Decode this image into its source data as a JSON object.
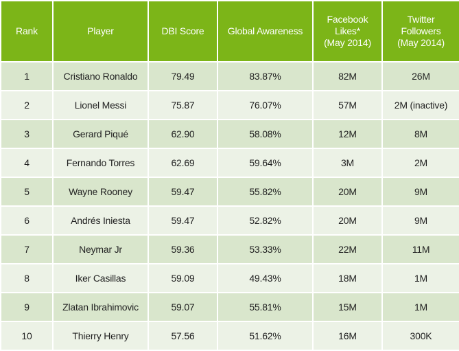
{
  "colors": {
    "header_bg": "#7cb518",
    "row_dark": "#d9e6cc",
    "row_light": "#ecf2e6",
    "header_text": "#ffffff",
    "cell_text": "#222222"
  },
  "chart_data": {
    "type": "table",
    "columns": [
      "Rank",
      "Player",
      "DBI Score",
      "Global Awareness",
      "Facebook\nLikes*\n(May 2014)",
      "Twitter\nFollowers\n(May 2014)"
    ],
    "rows": [
      [
        "1",
        "Cristiano Ronaldo",
        "79.49",
        "83.87%",
        "82M",
        "26M"
      ],
      [
        "2",
        "Lionel Messi",
        "75.87",
        "76.07%",
        "57M",
        "2M (inactive)"
      ],
      [
        "3",
        "Gerard Piqué",
        "62.90",
        "58.08%",
        "12M",
        "8M"
      ],
      [
        "4",
        "Fernando Torres",
        "62.69",
        "59.64%",
        "3M",
        "2M"
      ],
      [
        "5",
        "Wayne Rooney",
        "59.47",
        "55.82%",
        "20M",
        "9M"
      ],
      [
        "6",
        "Andrés Iniesta",
        "59.47",
        "52.82%",
        "20M",
        "9M"
      ],
      [
        "7",
        "Neymar Jr",
        "59.36",
        "53.33%",
        "22M",
        "11M"
      ],
      [
        "8",
        "Iker Casillas",
        "59.09",
        "49.43%",
        "18M",
        "1M"
      ],
      [
        "9",
        "Zlatan Ibrahimovic",
        "59.07",
        "55.81%",
        "15M",
        "1M"
      ],
      [
        "10",
        "Thierry Henry",
        "57.56",
        "51.62%",
        "16M",
        "300K"
      ]
    ]
  }
}
